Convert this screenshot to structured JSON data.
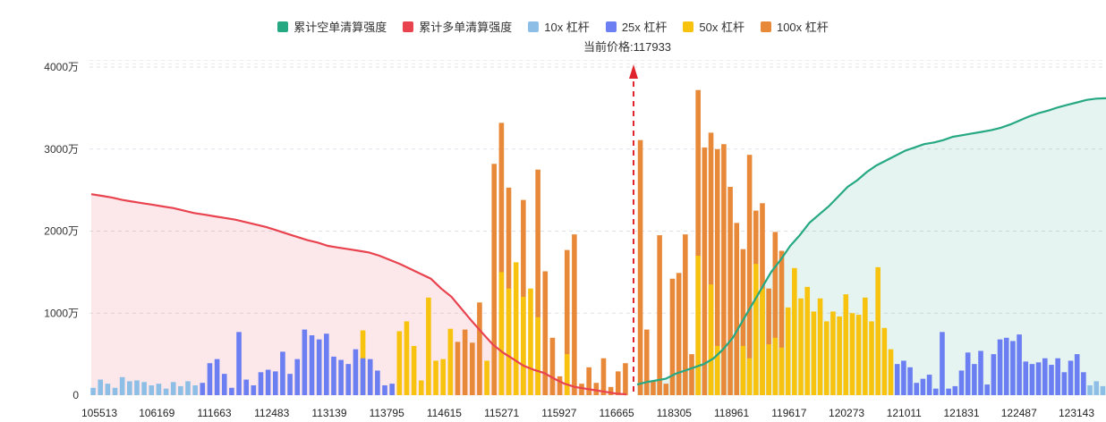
{
  "chart_data": {
    "type": "bar",
    "legend": [
      {
        "name": "累计空单清算强度",
        "color": "#26a883"
      },
      {
        "name": "累计多单清算强度",
        "color": "#e8434f"
      },
      {
        "name": "10x 杠杆",
        "color": "#8dbfe6"
      },
      {
        "name": "25x 杠杆",
        "color": "#6b7ef2"
      },
      {
        "name": "50x 杠杆",
        "color": "#f7c30f"
      },
      {
        "name": "100x 杠杆",
        "color": "#e8893a"
      }
    ],
    "current_price_label": "当前价格:117933",
    "current_price": 117933,
    "x_tick_labels": [
      "105513",
      "106169",
      "111663",
      "112483",
      "113139",
      "113795",
      "114615",
      "115271",
      "115927",
      "116665",
      "118305",
      "118961",
      "119617",
      "120273",
      "121011",
      "121831",
      "122487",
      "123143"
    ],
    "y_axis": {
      "ticks": [
        0,
        1000,
        2000,
        3000,
        4000
      ],
      "tick_labels": [
        "0",
        "1000万",
        "2000万",
        "3000万",
        "4000万"
      ],
      "unit": "万",
      "ylim": [
        0,
        4000
      ]
    },
    "grid": true,
    "legend_position": "top-center",
    "bars": [
      {
        "v": 90,
        "l": "10x"
      },
      {
        "v": 190,
        "l": "10x"
      },
      {
        "v": 140,
        "l": "10x"
      },
      {
        "v": 90,
        "l": "10x"
      },
      {
        "v": 220,
        "l": "10x"
      },
      {
        "v": 170,
        "l": "10x"
      },
      {
        "v": 180,
        "l": "10x"
      },
      {
        "v": 160,
        "l": "10x"
      },
      {
        "v": 120,
        "l": "10x"
      },
      {
        "v": 140,
        "l": "10x"
      },
      {
        "v": 80,
        "l": "10x"
      },
      {
        "v": 160,
        "l": "10x"
      },
      {
        "v": 110,
        "l": "10x"
      },
      {
        "v": 170,
        "l": "10x"
      },
      {
        "v": 120,
        "l": "10x"
      },
      {
        "v": 150,
        "l": "25x"
      },
      {
        "v": 390,
        "l": "25x"
      },
      {
        "v": 440,
        "l": "25x"
      },
      {
        "v": 260,
        "l": "25x"
      },
      {
        "v": 90,
        "l": "25x"
      },
      {
        "v": 770,
        "l": "25x"
      },
      {
        "v": 190,
        "l": "25x"
      },
      {
        "v": 120,
        "l": "25x"
      },
      {
        "v": 280,
        "l": "25x"
      },
      {
        "v": 310,
        "l": "25x"
      },
      {
        "v": 290,
        "l": "25x"
      },
      {
        "v": 530,
        "l": "25x"
      },
      {
        "v": 260,
        "l": "25x"
      },
      {
        "v": 440,
        "l": "25x"
      },
      {
        "v": 800,
        "l": "25x"
      },
      {
        "v": 730,
        "l": "25x"
      },
      {
        "v": 680,
        "l": "25x"
      },
      {
        "v": 750,
        "l": "25x"
      },
      {
        "v": 470,
        "l": "25x"
      },
      {
        "v": 430,
        "l": "25x"
      },
      {
        "v": 380,
        "l": "25x"
      },
      {
        "v": 560,
        "l": "25x"
      },
      {
        "v": 790,
        "l": "50x",
        "hi": 450,
        "hiL": "50x"
      },
      {
        "v": 440,
        "l": "25x"
      },
      {
        "v": 300,
        "l": "25x"
      },
      {
        "v": 120,
        "l": "25x"
      },
      {
        "v": 140,
        "l": "25x"
      },
      {
        "v": 780,
        "l": "50x"
      },
      {
        "v": 900,
        "l": "50x"
      },
      {
        "v": 600,
        "l": "50x"
      },
      {
        "v": 180,
        "l": "50x"
      },
      {
        "v": 1190,
        "l": "50x"
      },
      {
        "v": 420,
        "l": "50x"
      },
      {
        "v": 440,
        "l": "50x"
      },
      {
        "v": 810,
        "l": "50x"
      },
      {
        "v": 650,
        "l": "100x"
      },
      {
        "v": 800,
        "l": "100x"
      },
      {
        "v": 640,
        "l": "100x"
      },
      {
        "v": 1130,
        "l": "100x"
      },
      {
        "v": 420,
        "l": "50x"
      },
      {
        "v": 2820,
        "l": "100x"
      },
      {
        "v": 3320,
        "l": "100x",
        "mid": 1500
      },
      {
        "v": 2530,
        "l": "100x",
        "mid": 1300
      },
      {
        "v": 1620,
        "l": "50x"
      },
      {
        "v": 2380,
        "l": "100x",
        "mid": 1200
      },
      {
        "v": 1300,
        "l": "50x"
      },
      {
        "v": 2750,
        "l": "100x",
        "mid": 950
      },
      {
        "v": 1510,
        "l": "100x"
      },
      {
        "v": 700,
        "l": "100x"
      },
      {
        "v": 230,
        "l": "100x"
      },
      {
        "v": 1770,
        "l": "100x",
        "mid": 500
      },
      {
        "v": 1960,
        "l": "100x"
      },
      {
        "v": 140,
        "l": "100x"
      },
      {
        "v": 340,
        "l": "100x"
      },
      {
        "v": 150,
        "l": "100x"
      },
      {
        "v": 450,
        "l": "100x"
      },
      {
        "v": 100,
        "l": "100x"
      },
      {
        "v": 290,
        "l": "100x"
      },
      {
        "v": 390,
        "l": "100x"
      },
      {
        "v": 3110,
        "l": "100x"
      },
      {
        "v": 800,
        "l": "100x"
      },
      {
        "v": 180,
        "l": "100x"
      },
      {
        "v": 1950,
        "l": "100x"
      },
      {
        "v": 140,
        "l": "100x"
      },
      {
        "v": 1420,
        "l": "100x"
      },
      {
        "v": 1490,
        "l": "100x"
      },
      {
        "v": 1960,
        "l": "100x"
      },
      {
        "v": 500,
        "l": "100x"
      },
      {
        "v": 3720,
        "l": "100x",
        "mid": 1700
      },
      {
        "v": 3020,
        "l": "100x"
      },
      {
        "v": 3200,
        "l": "100x",
        "mid": 1350
      },
      {
        "v": 3000,
        "l": "100x",
        "mid": 600
      },
      {
        "v": 3060,
        "l": "100x"
      },
      {
        "v": 2540,
        "l": "100x"
      },
      {
        "v": 2100,
        "l": "100x"
      },
      {
        "v": 1780,
        "l": "100x",
        "mid": 600
      },
      {
        "v": 2930,
        "l": "100x",
        "mid": 450
      },
      {
        "v": 2250,
        "l": "100x",
        "mid": 1600
      },
      {
        "v": 2340,
        "l": "100x",
        "mid": 1300
      },
      {
        "v": 1300,
        "l": "100x",
        "mid": 620
      },
      {
        "v": 1990,
        "l": "100x",
        "mid": 700
      },
      {
        "v": 1760,
        "l": "100x",
        "mid": 580
      },
      {
        "v": 1070,
        "l": "50x"
      },
      {
        "v": 1550,
        "l": "50x"
      },
      {
        "v": 1180,
        "l": "50x"
      },
      {
        "v": 1320,
        "l": "50x"
      },
      {
        "v": 1020,
        "l": "50x"
      },
      {
        "v": 1180,
        "l": "50x"
      },
      {
        "v": 900,
        "l": "50x"
      },
      {
        "v": 1020,
        "l": "50x"
      },
      {
        "v": 960,
        "l": "50x"
      },
      {
        "v": 1230,
        "l": "50x"
      },
      {
        "v": 1000,
        "l": "50x"
      },
      {
        "v": 980,
        "l": "50x"
      },
      {
        "v": 1190,
        "l": "50x"
      },
      {
        "v": 900,
        "l": "50x"
      },
      {
        "v": 1560,
        "l": "50x"
      },
      {
        "v": 820,
        "l": "50x"
      },
      {
        "v": 560,
        "l": "50x"
      },
      {
        "v": 380,
        "l": "25x"
      },
      {
        "v": 420,
        "l": "25x"
      },
      {
        "v": 340,
        "l": "25x"
      },
      {
        "v": 150,
        "l": "25x"
      },
      {
        "v": 200,
        "l": "25x"
      },
      {
        "v": 250,
        "l": "25x"
      },
      {
        "v": 80,
        "l": "25x"
      },
      {
        "v": 770,
        "l": "25x"
      },
      {
        "v": 80,
        "l": "25x"
      },
      {
        "v": 110,
        "l": "25x"
      },
      {
        "v": 300,
        "l": "25x"
      },
      {
        "v": 520,
        "l": "25x"
      },
      {
        "v": 380,
        "l": "25x"
      },
      {
        "v": 540,
        "l": "25x"
      },
      {
        "v": 130,
        "l": "25x"
      },
      {
        "v": 500,
        "l": "25x"
      },
      {
        "v": 680,
        "l": "25x"
      },
      {
        "v": 700,
        "l": "25x"
      },
      {
        "v": 660,
        "l": "25x"
      },
      {
        "v": 740,
        "l": "25x"
      },
      {
        "v": 410,
        "l": "25x"
      },
      {
        "v": 380,
        "l": "25x"
      },
      {
        "v": 400,
        "l": "25x"
      },
      {
        "v": 450,
        "l": "25x"
      },
      {
        "v": 370,
        "l": "25x"
      },
      {
        "v": 450,
        "l": "25x"
      },
      {
        "v": 280,
        "l": "25x"
      },
      {
        "v": 420,
        "l": "25x"
      },
      {
        "v": 500,
        "l": "25x"
      },
      {
        "v": 280,
        "l": "25x"
      },
      {
        "v": 120,
        "l": "10x"
      },
      {
        "v": 170,
        "l": "10x"
      },
      {
        "v": 110,
        "l": "10x"
      }
    ],
    "bars_split_index": 74,
    "series": [
      {
        "name": "累计多单清算强度",
        "type": "area",
        "values": [
          2450,
          2430,
          2410,
          2380,
          2360,
          2340,
          2320,
          2300,
          2280,
          2250,
          2220,
          2200,
          2180,
          2160,
          2140,
          2110,
          2080,
          2050,
          2010,
          1970,
          1930,
          1890,
          1860,
          1820,
          1800,
          1780,
          1760,
          1740,
          1700,
          1650,
          1600,
          1540,
          1480,
          1420,
          1300,
          1200,
          1050,
          900,
          760,
          620,
          520,
          440,
          360,
          310,
          270,
          200,
          140,
          100,
          80,
          60,
          40,
          20,
          10
        ]
      },
      {
        "name": "累计空单清算强度",
        "type": "area",
        "values": [
          130,
          160,
          180,
          200,
          260,
          300,
          340,
          380,
          450,
          560,
          700,
          900,
          1100,
          1300,
          1500,
          1650,
          1820,
          1950,
          2100,
          2200,
          2300,
          2420,
          2540,
          2620,
          2720,
          2800,
          2860,
          2920,
          2980,
          3020,
          3060,
          3080,
          3110,
          3150,
          3170,
          3190,
          3210,
          3230,
          3260,
          3300,
          3350,
          3400,
          3440,
          3470,
          3510,
          3540,
          3570,
          3600,
          3615,
          3620
        ]
      }
    ]
  }
}
